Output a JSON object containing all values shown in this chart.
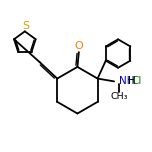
{
  "bg_color": "#ffffff",
  "bond_color": "#000000",
  "O_color": "#ff8000",
  "N_color": "#0000cd",
  "S_color": "#ccaa00",
  "Cl_color": "#008000",
  "line_width": 1.3,
  "fig_size": [
    1.52,
    1.52
  ],
  "dpi": 100,
  "xlim": [
    -0.5,
    4.8
  ],
  "ylim": [
    -1.8,
    3.2
  ]
}
